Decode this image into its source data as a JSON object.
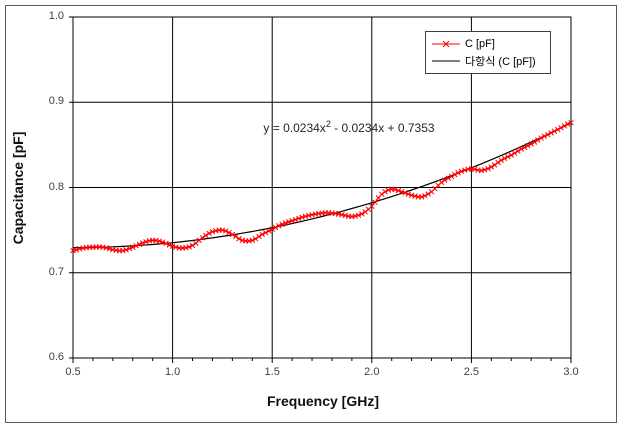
{
  "chart": {
    "x_axis_title": "Frequency [GHz]",
    "y_axis_title": "Capacitance [pF]",
    "equation": {
      "prefix": "y = 0.0234x",
      "superscript": "2",
      "suffix": " - 0.0234x + 0.7353"
    },
    "legend": {
      "items": [
        {
          "label": "C [pF]",
          "color": "#ff0000",
          "marker": "x-line"
        },
        {
          "label": "다항식 (C [pF])",
          "color": "#000000",
          "marker": "line"
        }
      ]
    },
    "colors": {
      "series": "#ff0000",
      "fit_line": "#000000",
      "grid": "#000000",
      "axis": "#000000",
      "tick_text": "#3f3f3f",
      "border": "#5a5a5a"
    }
  },
  "chart_data": {
    "type": "line",
    "title": "",
    "xlabel": "Frequency [GHz]",
    "ylabel": "Capacitance [pF]",
    "xlim": [
      0.5,
      3.0
    ],
    "ylim": [
      0.6,
      1.0
    ],
    "x_tick_labels": [
      "0.5",
      "1.0",
      "1.5",
      "2.0",
      "2.5",
      "3.0"
    ],
    "y_tick_labels": [
      "1.0",
      "0.9",
      "0.8",
      "0.7",
      "0.6"
    ],
    "x_ticks": [
      0.5,
      1.0,
      1.5,
      2.0,
      2.5,
      3.0
    ],
    "y_ticks": [
      1.0,
      0.9,
      0.8,
      0.7,
      0.6
    ],
    "x_minor_tick_step": 0.1,
    "grid": true,
    "legend_position": "top-right",
    "series": [
      {
        "name": "C [pF]",
        "style": "line-with-x-markers",
        "color": "#ff0000",
        "x": [
          0.5,
          0.55,
          0.6,
          0.65,
          0.7,
          0.75,
          0.8,
          0.85,
          0.9,
          0.95,
          1.0,
          1.05,
          1.1,
          1.15,
          1.2,
          1.25,
          1.3,
          1.35,
          1.4,
          1.45,
          1.5,
          1.55,
          1.6,
          1.65,
          1.7,
          1.75,
          1.8,
          1.85,
          1.9,
          1.95,
          2.0,
          2.05,
          2.1,
          2.15,
          2.2,
          2.25,
          2.3,
          2.35,
          2.4,
          2.45,
          2.5,
          2.55,
          2.6,
          2.65,
          2.7,
          2.75,
          2.8,
          2.85,
          2.9,
          2.95,
          3.0
        ],
        "y": [
          0.726,
          0.729,
          0.73,
          0.73,
          0.727,
          0.726,
          0.73,
          0.735,
          0.738,
          0.736,
          0.731,
          0.729,
          0.732,
          0.741,
          0.748,
          0.75,
          0.745,
          0.738,
          0.738,
          0.745,
          0.751,
          0.757,
          0.761,
          0.765,
          0.768,
          0.77,
          0.77,
          0.768,
          0.766,
          0.769,
          0.778,
          0.792,
          0.798,
          0.795,
          0.791,
          0.789,
          0.795,
          0.806,
          0.813,
          0.819,
          0.822,
          0.82,
          0.824,
          0.832,
          0.838,
          0.845,
          0.851,
          0.858,
          0.864,
          0.87,
          0.876
        ]
      },
      {
        "name": "다항식 (C [pF])",
        "style": "polynomial-trendline",
        "color": "#000000",
        "coefficients": [
          0.0234,
          -0.0234,
          0.7353
        ],
        "equation": "y = 0.0234x2 - 0.0234x + 0.7353"
      }
    ]
  }
}
